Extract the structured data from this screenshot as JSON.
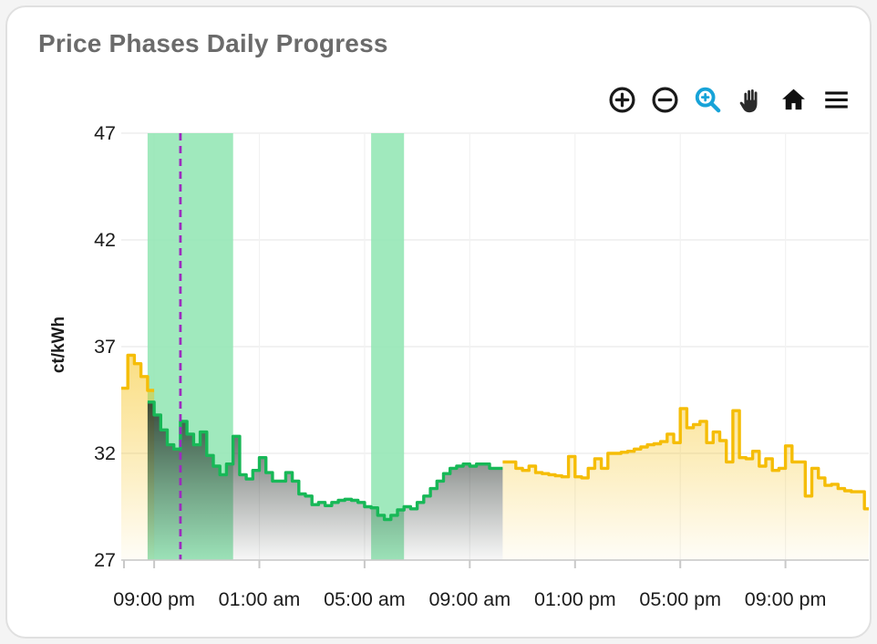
{
  "card": {
    "title": "Price Phases Daily Progress"
  },
  "toolbar": {
    "icons": [
      {
        "name": "zoom-in-icon",
        "glyph": "circle-plus",
        "color": "#1a1a1a"
      },
      {
        "name": "zoom-out-icon",
        "glyph": "circle-minus",
        "color": "#1a1a1a"
      },
      {
        "name": "box-zoom-icon",
        "glyph": "magnifier-plus",
        "color": "#17a3d8",
        "active": true
      },
      {
        "name": "pan-icon",
        "glyph": "hand",
        "color": "#222222"
      },
      {
        "name": "home-icon",
        "glyph": "house",
        "color": "#111111"
      },
      {
        "name": "menu-icon",
        "glyph": "hamburger",
        "color": "#111111"
      }
    ]
  },
  "chart_data": {
    "type": "step-area",
    "title": "Price Phases Daily Progress",
    "xlabel": "",
    "ylabel": "ct/kWh",
    "ylim": [
      27,
      47
    ],
    "yticks": [
      27,
      32,
      37,
      42,
      47
    ],
    "grid": true,
    "step_minutes": 15,
    "time_origin": "19:45",
    "domain_minutes": [
      0,
      1705
    ],
    "xticks": [
      {
        "t": 75,
        "label": "09:00 pm"
      },
      {
        "t": 315,
        "label": "01:00 am"
      },
      {
        "t": 555,
        "label": "05:00 am"
      },
      {
        "t": 795,
        "label": "09:00 am"
      },
      {
        "t": 1035,
        "label": "01:00 pm"
      },
      {
        "t": 1275,
        "label": "05:00 pm"
      },
      {
        "t": 1515,
        "label": "09:00 pm"
      }
    ],
    "highlight_bands": [
      {
        "t0": 60,
        "t1": 255,
        "from": "08:45 pm",
        "to": "12:00 am",
        "color": "#8fe5b1"
      },
      {
        "t0": 570,
        "t1": 645,
        "from": "05:15 am",
        "to": "06:30 am",
        "color": "#8fe5b1"
      }
    ],
    "now_marker": {
      "t": 135,
      "time": "10:00 pm",
      "color": "#9d2bbf",
      "style": "dashed"
    },
    "series": [
      {
        "name": "evening-high-phase",
        "phase": "standard",
        "color": "#f5bd07",
        "fill": "gold",
        "end": 75,
        "points": [
          [
            0,
            35.05
          ],
          [
            15,
            36.6
          ],
          [
            30,
            36.2
          ],
          [
            45,
            35.6
          ],
          [
            60,
            34.95
          ]
        ]
      },
      {
        "name": "cheap-green-phase",
        "phase": "cheap",
        "color": "#17b857",
        "fill": "dark",
        "end": 870,
        "points": [
          [
            60,
            34.4
          ],
          [
            75,
            33.8
          ],
          [
            90,
            33.1
          ],
          [
            105,
            32.4
          ],
          [
            120,
            32.2
          ],
          [
            135,
            33.5
          ],
          [
            150,
            32.9
          ],
          [
            165,
            32.4
          ],
          [
            180,
            33.0
          ],
          [
            195,
            31.9
          ],
          [
            210,
            31.4
          ],
          [
            225,
            31.0
          ],
          [
            240,
            31.5
          ],
          [
            255,
            32.8
          ],
          [
            270,
            31.0
          ],
          [
            285,
            30.8
          ],
          [
            300,
            31.2
          ],
          [
            315,
            31.8
          ],
          [
            330,
            31.1
          ],
          [
            345,
            30.7
          ],
          [
            360,
            30.7
          ],
          [
            375,
            31.1
          ],
          [
            390,
            30.7
          ],
          [
            405,
            30.1
          ],
          [
            420,
            30.0
          ],
          [
            435,
            29.6
          ],
          [
            450,
            29.7
          ],
          [
            465,
            29.55
          ],
          [
            480,
            29.7
          ],
          [
            495,
            29.8
          ],
          [
            510,
            29.85
          ],
          [
            525,
            29.8
          ],
          [
            540,
            29.7
          ],
          [
            555,
            29.5
          ],
          [
            570,
            29.45
          ],
          [
            585,
            29.1
          ],
          [
            600,
            28.9
          ],
          [
            615,
            29.1
          ],
          [
            630,
            29.35
          ],
          [
            645,
            29.5
          ],
          [
            660,
            29.4
          ],
          [
            675,
            29.7
          ],
          [
            690,
            30.0
          ],
          [
            705,
            30.35
          ],
          [
            720,
            30.7
          ],
          [
            735,
            31.05
          ],
          [
            750,
            31.3
          ],
          [
            765,
            31.4
          ],
          [
            780,
            31.5
          ],
          [
            795,
            31.4
          ],
          [
            810,
            31.5
          ],
          [
            825,
            31.5
          ],
          [
            840,
            31.3
          ],
          [
            855,
            31.3
          ]
        ]
      },
      {
        "name": "day-high-phase",
        "phase": "standard",
        "color": "#f5bd07",
        "fill": "gold",
        "end": 1705,
        "points": [
          [
            870,
            31.6
          ],
          [
            885,
            31.6
          ],
          [
            900,
            31.3
          ],
          [
            915,
            31.2
          ],
          [
            930,
            31.4
          ],
          [
            945,
            31.1
          ],
          [
            960,
            31.05
          ],
          [
            975,
            31.0
          ],
          [
            990,
            30.95
          ],
          [
            1005,
            30.9
          ],
          [
            1020,
            31.85
          ],
          [
            1035,
            30.9
          ],
          [
            1050,
            30.85
          ],
          [
            1065,
            31.3
          ],
          [
            1080,
            31.75
          ],
          [
            1095,
            31.3
          ],
          [
            1110,
            32.0
          ],
          [
            1125,
            32.0
          ],
          [
            1140,
            32.05
          ],
          [
            1155,
            32.1
          ],
          [
            1170,
            32.2
          ],
          [
            1185,
            32.3
          ],
          [
            1200,
            32.4
          ],
          [
            1215,
            32.45
          ],
          [
            1230,
            32.55
          ],
          [
            1245,
            32.9
          ],
          [
            1260,
            32.5
          ],
          [
            1275,
            34.1
          ],
          [
            1290,
            33.2
          ],
          [
            1305,
            33.35
          ],
          [
            1320,
            33.5
          ],
          [
            1335,
            32.5
          ],
          [
            1350,
            33.0
          ],
          [
            1365,
            32.6
          ],
          [
            1380,
            31.6
          ],
          [
            1395,
            34.0
          ],
          [
            1410,
            31.8
          ],
          [
            1425,
            31.75
          ],
          [
            1440,
            32.1
          ],
          [
            1455,
            31.4
          ],
          [
            1470,
            31.75
          ],
          [
            1485,
            31.2
          ],
          [
            1500,
            31.3
          ],
          [
            1515,
            32.35
          ],
          [
            1530,
            31.6
          ],
          [
            1545,
            31.6
          ],
          [
            1560,
            30.0
          ],
          [
            1575,
            31.3
          ],
          [
            1590,
            30.85
          ],
          [
            1605,
            30.5
          ],
          [
            1620,
            30.55
          ],
          [
            1635,
            30.35
          ],
          [
            1650,
            30.25
          ],
          [
            1665,
            30.2
          ],
          [
            1680,
            30.2
          ],
          [
            1695,
            29.4
          ]
        ]
      }
    ]
  }
}
